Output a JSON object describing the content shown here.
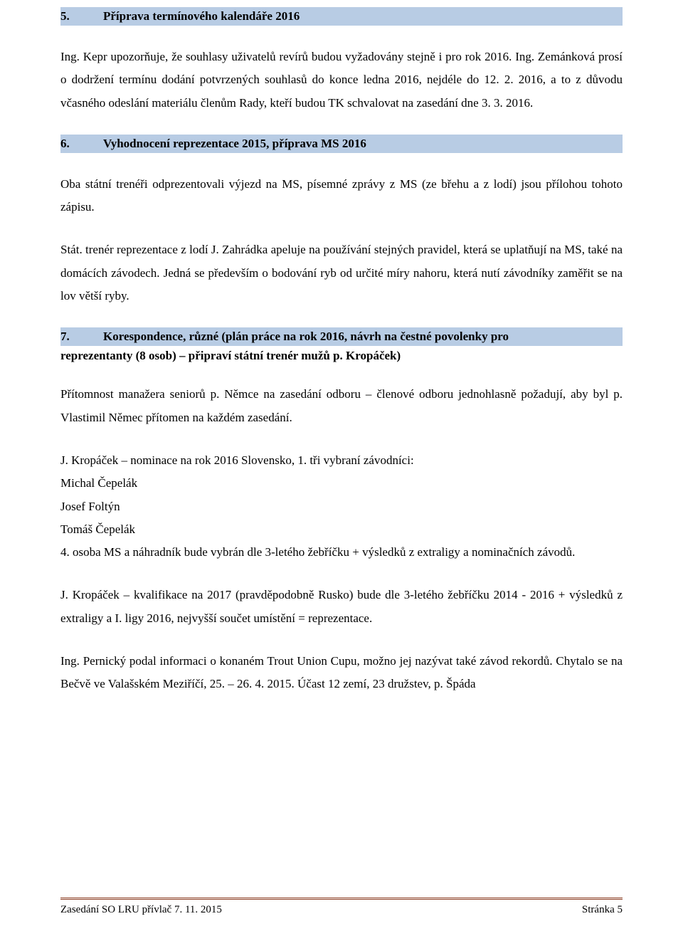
{
  "colors": {
    "heading_bg": "#b8cce4",
    "text": "#000000",
    "page_bg": "#ffffff",
    "footer_rule": "#8a3a1f"
  },
  "typography": {
    "font_family": "Times New Roman",
    "body_fontsize_pt": 12,
    "heading_weight": "bold",
    "line_height": 1.9
  },
  "sections": {
    "s5": {
      "num": "5.",
      "title": "Příprava termínového kalendáře 2016",
      "para": "Ing. Kepr upozorňuje, že souhlasy uživatelů revírů budou vyžadovány stejně i pro rok 2016. Ing. Zemánková prosí o dodržení termínu dodání potvrzených souhlasů do konce ledna 2016, nejdéle do 12. 2. 2016, a to z důvodu včasného odeslání materiálu členům Rady, kteří budou TK schvalovat na zasedání dne 3. 3. 2016."
    },
    "s6": {
      "num": "6.",
      "title": "Vyhodnocení reprezentace 2015, příprava MS 2016",
      "para1": "Oba státní trenéři odprezentovali výjezd na MS, písemné zprávy z MS (ze břehu a z lodí) jsou přílohou tohoto zápisu.",
      "para2": "Stát. trenér reprezentace z lodí J. Zahrádka apeluje na používání stejných pravidel, která se uplatňují na MS, také na domácích závodech. Jedná se především o bodování ryb od určité míry nahoru, která nutí závodníky zaměřit se na lov větší ryby."
    },
    "s7": {
      "num": "7.",
      "title_line1": "Korespondence, různé (plán práce na rok 2016, návrh na čestné povolenky pro",
      "title_line2": "reprezentanty (8 osob) – připraví státní trenér mužů p. Kropáček)",
      "para1": "Přítomnost manažera seniorů p. Němce na zasedání odboru – členové odboru jednohlasně požadují, aby byl p. Vlastimil Němec přítomen na každém zasedání.",
      "nom_intro": "J. Kropáček – nominace na rok 2016 Slovensko, 1. tři vybraní závodníci:",
      "names": [
        "Michal Čepelák",
        "Josef Foltýn",
        "Tomáš Čepelák"
      ],
      "para_after_names": "4. osoba MS a náhradník bude vybrán dle 3-letého žebříčku + výsledků z extraligy a nominačních závodů.",
      "para_kval": "J. Kropáček – kvalifikace na 2017 (pravděpodobně Rusko) bude dle 3-letého žebříčku 2014 - 2016 + výsledků z extraligy a I. ligy 2016, nejvyšší součet umístění = reprezentace.",
      "para_last": "Ing. Pernický podal informaci o konaném Trout Union Cupu, možno jej nazývat také závod rekordů. Chytalo se na Bečvě ve Valašském Meziříčí, 25. – 26. 4. 2015. Účast 12 zemí, 23 družstev, p. Špáda"
    }
  },
  "footer": {
    "left": "Zasedání SO LRU přívlač 7. 11. 2015",
    "right": "Stránka 5"
  }
}
